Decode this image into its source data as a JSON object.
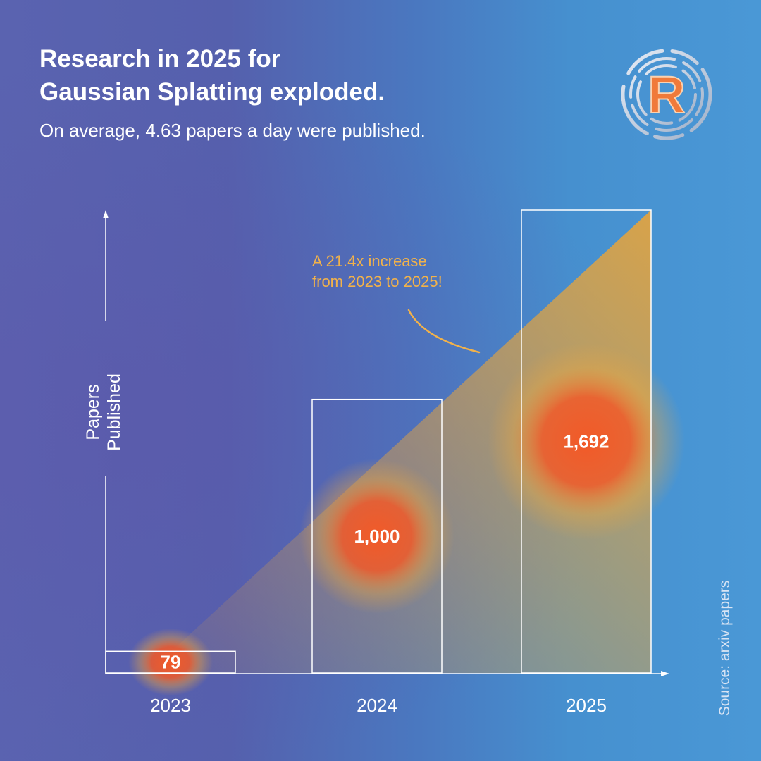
{
  "header": {
    "title": "Research in 2025 for\nGaussian Splatting exploded.",
    "subtitle": "On average, 4.63 papers a day were published."
  },
  "logo": {
    "icon": "r-letter-logo-icon",
    "colors": {
      "outer": "#c8d2e2",
      "letter": "#f07a3a"
    }
  },
  "annotation": {
    "text": "A 21.4x increase\nfrom 2023 to 2025!",
    "color": "#f2b24a"
  },
  "source": "Source: arxiv papers",
  "colors": {
    "label_glow": "#f25a28",
    "wedge": "#e8a43a",
    "bar_outline": "#ffffff"
  },
  "chart_data": {
    "type": "bar",
    "categories": [
      "2023",
      "2024",
      "2025"
    ],
    "values": [
      79,
      1000,
      1692
    ],
    "value_labels": [
      "79",
      "1,000",
      "1,692"
    ],
    "ylabel": "Papers\nPublished",
    "ylim": [
      0,
      1692
    ],
    "grid": false
  }
}
